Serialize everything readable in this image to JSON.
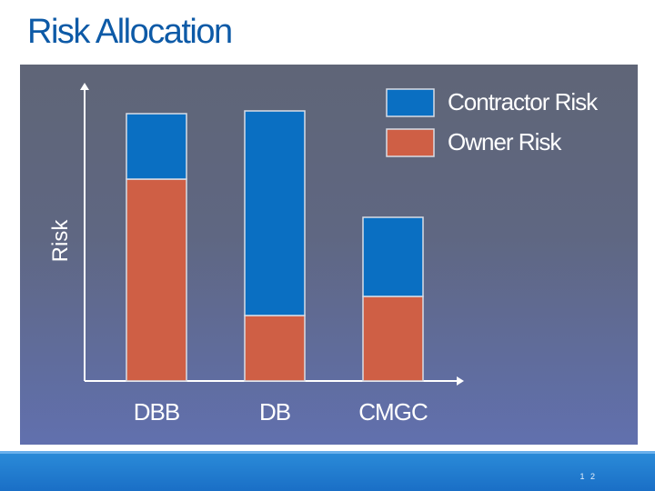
{
  "slide": {
    "title": "Risk Allocation",
    "page_number": "1 2"
  },
  "colors": {
    "contractor": "#0a6fc2",
    "owner": "#cf5f45",
    "axis": "#ffffff",
    "title": "#0d5aa7"
  },
  "chart_data": {
    "type": "bar",
    "stacked": true,
    "title": "",
    "xlabel": "",
    "ylabel": "Risk",
    "categories": [
      "DBB",
      "DB",
      "CMGC"
    ],
    "series": [
      {
        "name": "Owner Risk",
        "values": [
          74,
          24,
          31
        ]
      },
      {
        "name": "Contractor Risk",
        "values": [
          24,
          75,
          29
        ]
      }
    ],
    "ylim": [
      0,
      110
    ],
    "legend_position": "top-right",
    "y_tick_labels": false,
    "grid": false
  }
}
